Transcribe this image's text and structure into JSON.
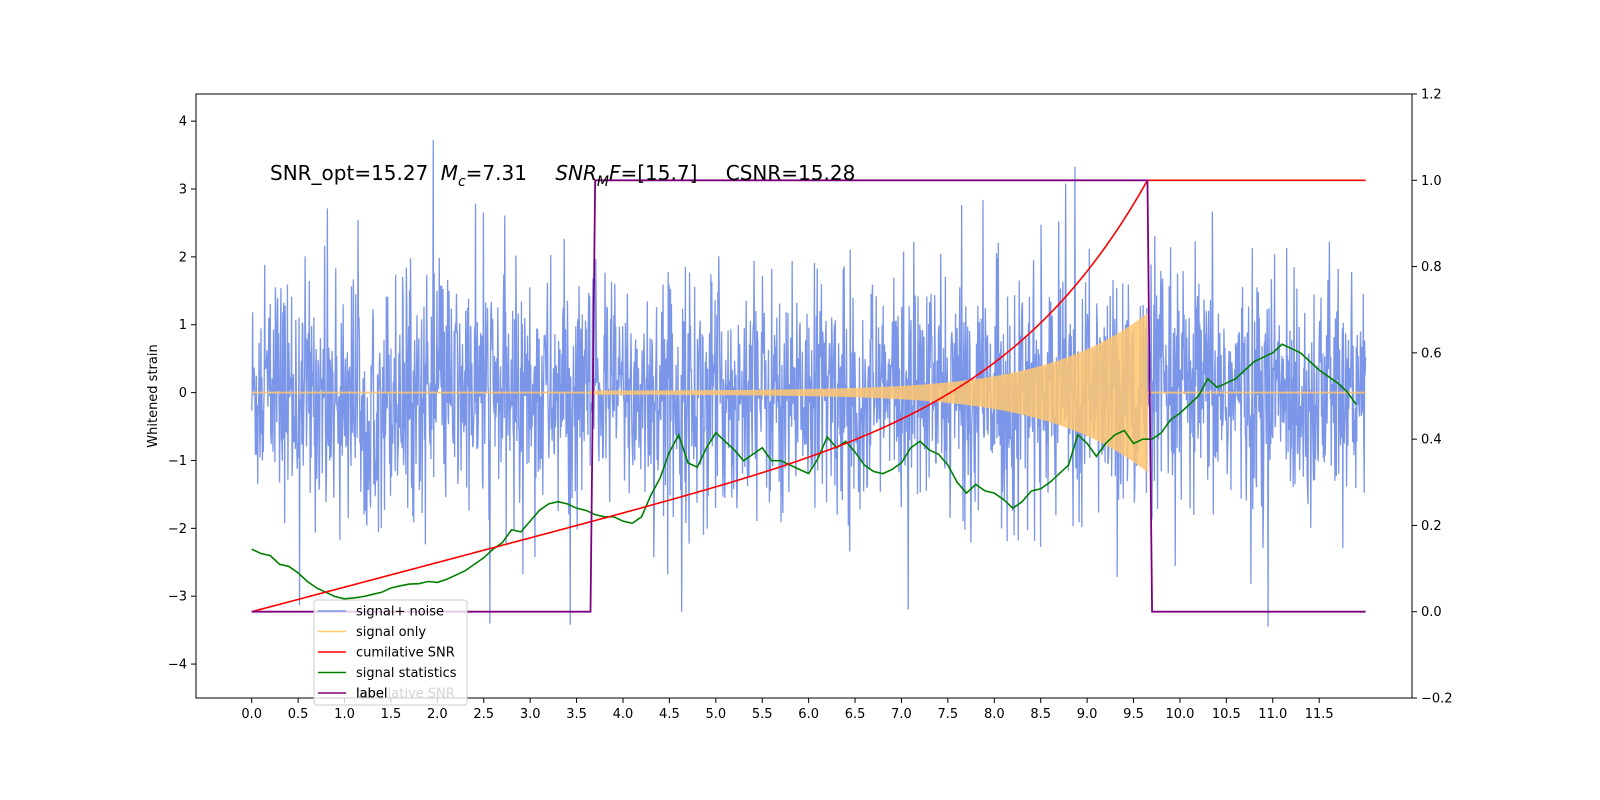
{
  "chart_data": {
    "type": "line",
    "title": "",
    "xlabel": "",
    "ylabel": "Whitened strain",
    "xlim": [
      -0.6,
      12.5
    ],
    "ylim": [
      -4.5,
      4.4
    ],
    "y2lim": [
      -0.2,
      1.2
    ],
    "grid": false,
    "legend_position": "lower-left",
    "x_ticks": [
      "0.0",
      "0.5",
      "1.0",
      "1.5",
      "2.0",
      "2.5",
      "3.0",
      "3.5",
      "4.0",
      "4.5",
      "5.0",
      "5.5",
      "6.0",
      "6.5",
      "7.0",
      "7.5",
      "8.0",
      "8.5",
      "9.0",
      "9.5",
      "10.0",
      "10.5",
      "11.0",
      "11.5"
    ],
    "y_ticks": [
      "4",
      "3",
      "2",
      "1",
      "0",
      "−1",
      "−2",
      "−3",
      "−4"
    ],
    "y2_ticks": [
      "1.2",
      "1.0",
      "0.8",
      "0.6",
      "0.4",
      "0.2",
      "0.0",
      "−0.2"
    ],
    "annotation": {
      "snr_opt": "SNR_opt=15.27",
      "mc_symbol": "M",
      "mc_sub": "c",
      "mc_value": "=7.31",
      "snr_mf_symbol": "SNR",
      "snr_mf_sub": "M",
      "snr_mf_f": "F",
      "snr_mf_value": "=[15.7]",
      "csnr": "CSNR=15.28"
    },
    "series": [
      {
        "name": "signal+ noise",
        "color": "#7b96e8",
        "axis": "left",
        "std": 0.85,
        "range": [
          0.0,
          12.0
        ]
      },
      {
        "name": "signal only",
        "color": "#ffc66e",
        "axis": "left",
        "chirp_start": 3.65,
        "chirp_end": 9.65,
        "amp_start": 0.03,
        "amp_end": 1.05
      },
      {
        "name": "cumilative SNR",
        "color": "#ff0000",
        "axis": "right",
        "x0": 0.0,
        "x_end": 9.65,
        "y_end": 1.0,
        "y_after": 1.0,
        "x_last": 12.0
      },
      {
        "name": "signal statistics",
        "color": "#007f00",
        "axis": "right",
        "x": [
          0.0,
          0.1,
          0.2,
          0.3,
          0.4,
          0.5,
          0.6,
          0.7,
          0.8,
          0.9,
          1.0,
          1.1,
          1.2,
          1.3,
          1.4,
          1.5,
          1.6,
          1.7,
          1.8,
          1.9,
          2.0,
          2.1,
          2.2,
          2.3,
          2.4,
          2.5,
          2.6,
          2.7,
          2.8,
          2.9,
          3.0,
          3.1,
          3.2,
          3.3,
          3.4,
          3.5,
          3.6,
          3.7,
          3.8,
          3.9,
          4.0,
          4.1,
          4.2,
          4.3,
          4.4,
          4.5,
          4.6,
          4.7,
          4.8,
          4.9,
          5.0,
          5.1,
          5.2,
          5.3,
          5.4,
          5.5,
          5.6,
          5.7,
          5.8,
          5.9,
          6.0,
          6.1,
          6.2,
          6.3,
          6.4,
          6.5,
          6.6,
          6.7,
          6.8,
          6.9,
          7.0,
          7.1,
          7.2,
          7.3,
          7.4,
          7.5,
          7.6,
          7.7,
          7.8,
          7.9,
          8.0,
          8.1,
          8.2,
          8.3,
          8.4,
          8.5,
          8.6,
          8.7,
          8.8,
          8.9,
          9.0,
          9.1,
          9.2,
          9.3,
          9.4,
          9.5,
          9.6,
          9.7,
          9.8,
          9.9,
          10.0,
          10.1,
          10.2,
          10.3,
          10.4,
          10.5,
          10.6,
          10.7,
          10.8,
          10.9,
          11.0,
          11.1,
          11.2,
          11.3,
          11.4,
          11.5,
          11.6,
          11.7,
          11.8,
          11.9
        ],
        "y": [
          0.145,
          0.135,
          0.13,
          0.11,
          0.105,
          0.09,
          0.07,
          0.055,
          0.045,
          0.035,
          0.03,
          0.032,
          0.035,
          0.04,
          0.045,
          0.055,
          0.06,
          0.064,
          0.065,
          0.07,
          0.068,
          0.075,
          0.085,
          0.095,
          0.11,
          0.125,
          0.145,
          0.16,
          0.19,
          0.185,
          0.21,
          0.235,
          0.25,
          0.255,
          0.25,
          0.24,
          0.235,
          0.225,
          0.22,
          0.22,
          0.21,
          0.205,
          0.22,
          0.27,
          0.31,
          0.37,
          0.41,
          0.345,
          0.335,
          0.38,
          0.415,
          0.395,
          0.375,
          0.35,
          0.365,
          0.38,
          0.35,
          0.35,
          0.34,
          0.33,
          0.32,
          0.355,
          0.405,
          0.38,
          0.395,
          0.37,
          0.34,
          0.325,
          0.32,
          0.33,
          0.345,
          0.38,
          0.395,
          0.375,
          0.365,
          0.34,
          0.3,
          0.275,
          0.295,
          0.28,
          0.275,
          0.26,
          0.24,
          0.255,
          0.28,
          0.285,
          0.3,
          0.32,
          0.34,
          0.41,
          0.39,
          0.36,
          0.39,
          0.41,
          0.42,
          0.39,
          0.4,
          0.4,
          0.415,
          0.445,
          0.46,
          0.48,
          0.5,
          0.54,
          0.52,
          0.53,
          0.54,
          0.56,
          0.58,
          0.59,
          0.6,
          0.62,
          0.61,
          0.6,
          0.58,
          0.56,
          0.545,
          0.53,
          0.51,
          0.48
        ]
      },
      {
        "name": "label",
        "color": "#7f007f",
        "axis": "right",
        "x": [
          0.0,
          3.65,
          3.7,
          9.65,
          9.7,
          12.0
        ],
        "y": [
          0.0,
          0.0,
          1.0,
          1.0,
          0.0,
          0.0
        ]
      }
    ],
    "legend_extra_text": "cumilative SNR"
  }
}
